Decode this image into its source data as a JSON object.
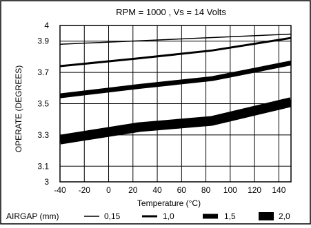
{
  "chart_data": {
    "type": "line",
    "title": "RPM = 1000 , Vs = 14 Volts",
    "xlabel": "Temperature (°C)",
    "ylabel": "OPERATE (DEGREES)",
    "xlim": [
      -40,
      150
    ],
    "ylim": [
      3,
      4
    ],
    "x_ticks": [
      "-40",
      "-20",
      "0",
      "20",
      "40",
      "60",
      "80",
      "100",
      "120",
      "140"
    ],
    "x_tick_values": [
      -40,
      -20,
      0,
      20,
      40,
      60,
      80,
      100,
      120,
      140
    ],
    "y_ticks": [
      "3",
      "3.1",
      "3.3",
      "3.5",
      "3.7",
      "3.9",
      "4"
    ],
    "y_tick_values": [
      3,
      3.1,
      3.3,
      3.5,
      3.7,
      3.9,
      4
    ],
    "grid": true,
    "legend": {
      "title": "AIRGAP (mm)",
      "position": "bottom"
    },
    "series": [
      {
        "name": "0,15",
        "x": [
          -40,
          150
        ],
        "values": [
          3.88,
          3.945
        ]
      },
      {
        "name": "1,0",
        "x": [
          -40,
          25,
          85,
          150
        ],
        "values": [
          3.74,
          3.79,
          3.84,
          3.92
        ]
      },
      {
        "name": "1,5",
        "x": [
          -40,
          25,
          85,
          150
        ],
        "values": [
          3.55,
          3.61,
          3.66,
          3.76
        ]
      },
      {
        "name": "2,0",
        "x": [
          -40,
          25,
          85,
          150
        ],
        "values": [
          3.27,
          3.35,
          3.39,
          3.51
        ]
      }
    ]
  }
}
